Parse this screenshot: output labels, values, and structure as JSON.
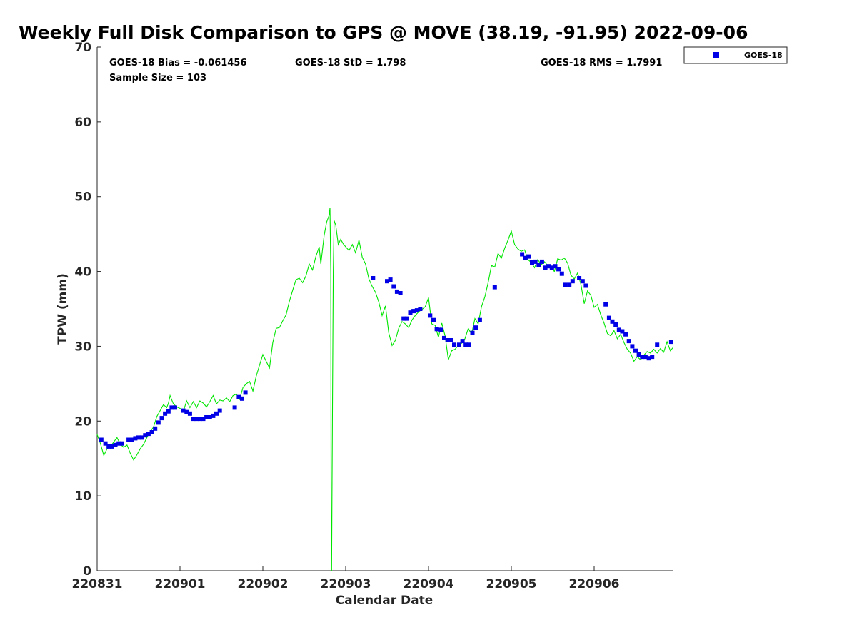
{
  "chart_data": {
    "type": "line+scatter",
    "title": "Weekly Full Disk Comparison to GPS @ MOVE (38.19, -91.95) 2022-09-06",
    "xlabel": "Calendar Date",
    "ylabel": "TPW (mm)",
    "xlim": [
      0,
      6.95
    ],
    "ylim": [
      0,
      70
    ],
    "x_ticks": [
      {
        "value": 0,
        "label": "220831"
      },
      {
        "value": 1,
        "label": "220901"
      },
      {
        "value": 2,
        "label": "220902"
      },
      {
        "value": 3,
        "label": "220903"
      },
      {
        "value": 4,
        "label": "220904"
      },
      {
        "value": 5,
        "label": "220905"
      },
      {
        "value": 6,
        "label": "220906"
      }
    ],
    "y_ticks": [
      0,
      10,
      20,
      30,
      40,
      50,
      60,
      70
    ],
    "stats": {
      "bias": "GOES-18 Bias = -0.061456",
      "std": "GOES-18 StD = 1.798",
      "rms": "GOES-18 RMS = 1.7991",
      "sample_size": "Sample Size = 103"
    },
    "legend": [
      {
        "label": "GOES-18",
        "color": "#0000e6",
        "marker": "square"
      }
    ],
    "legend_position": "top-right outside",
    "series": [
      {
        "name": "GPS",
        "kind": "line",
        "color": "#00e600",
        "points": [
          [
            0.0,
            18.2
          ],
          [
            0.04,
            17.0
          ],
          [
            0.08,
            15.4
          ],
          [
            0.12,
            16.3
          ],
          [
            0.16,
            16.6
          ],
          [
            0.2,
            17.2
          ],
          [
            0.24,
            17.8
          ],
          [
            0.28,
            16.9
          ],
          [
            0.32,
            16.5
          ],
          [
            0.36,
            16.8
          ],
          [
            0.4,
            15.7
          ],
          [
            0.44,
            14.8
          ],
          [
            0.48,
            15.5
          ],
          [
            0.52,
            16.3
          ],
          [
            0.56,
            16.9
          ],
          [
            0.6,
            17.8
          ],
          [
            0.64,
            18.6
          ],
          [
            0.68,
            19.2
          ],
          [
            0.72,
            20.6
          ],
          [
            0.76,
            21.4
          ],
          [
            0.8,
            22.2
          ],
          [
            0.84,
            21.8
          ],
          [
            0.86,
            22.4
          ],
          [
            0.88,
            23.4
          ],
          [
            0.92,
            22.3
          ],
          [
            0.96,
            21.9
          ],
          [
            1.0,
            21.7
          ],
          [
            1.04,
            21.3
          ],
          [
            1.08,
            22.7
          ],
          [
            1.12,
            21.8
          ],
          [
            1.16,
            22.6
          ],
          [
            1.2,
            21.8
          ],
          [
            1.24,
            22.7
          ],
          [
            1.28,
            22.4
          ],
          [
            1.32,
            21.9
          ],
          [
            1.36,
            22.6
          ],
          [
            1.4,
            23.4
          ],
          [
            1.44,
            22.3
          ],
          [
            1.48,
            22.8
          ],
          [
            1.52,
            22.7
          ],
          [
            1.56,
            23.1
          ],
          [
            1.6,
            22.6
          ],
          [
            1.64,
            23.4
          ],
          [
            1.68,
            23.6
          ],
          [
            1.72,
            22.9
          ],
          [
            1.76,
            24.5
          ],
          [
            1.8,
            25.0
          ],
          [
            1.84,
            25.3
          ],
          [
            1.88,
            24.0
          ],
          [
            1.92,
            26.0
          ],
          [
            1.96,
            27.5
          ],
          [
            2.0,
            28.9
          ],
          [
            2.04,
            28.0
          ],
          [
            2.08,
            27.1
          ],
          [
            2.12,
            30.5
          ],
          [
            2.16,
            32.4
          ],
          [
            2.2,
            32.5
          ],
          [
            2.24,
            33.4
          ],
          [
            2.28,
            34.2
          ],
          [
            2.32,
            36.0
          ],
          [
            2.36,
            37.5
          ],
          [
            2.4,
            38.9
          ],
          [
            2.44,
            39.1
          ],
          [
            2.48,
            38.5
          ],
          [
            2.52,
            39.4
          ],
          [
            2.56,
            41.0
          ],
          [
            2.6,
            40.2
          ],
          [
            2.64,
            42.0
          ],
          [
            2.68,
            43.3
          ],
          [
            2.7,
            41.0
          ],
          [
            2.74,
            44.8
          ],
          [
            2.77,
            46.6
          ],
          [
            2.8,
            47.5
          ],
          [
            2.81,
            48.5
          ],
          [
            2.82,
            40.0
          ],
          [
            2.825,
            0.0
          ],
          [
            2.83,
            0.0
          ],
          [
            2.84,
            20.0
          ],
          [
            2.85,
            40.0
          ],
          [
            2.86,
            46.8
          ],
          [
            2.88,
            46.2
          ],
          [
            2.91,
            43.6
          ],
          [
            2.94,
            44.3
          ],
          [
            2.97,
            43.7
          ],
          [
            3.0,
            43.3
          ],
          [
            3.04,
            42.8
          ],
          [
            3.08,
            43.6
          ],
          [
            3.12,
            42.5
          ],
          [
            3.16,
            44.2
          ],
          [
            3.2,
            41.9
          ],
          [
            3.24,
            41.0
          ],
          [
            3.28,
            39.0
          ],
          [
            3.32,
            38.0
          ],
          [
            3.36,
            37.2
          ],
          [
            3.4,
            35.9
          ],
          [
            3.44,
            34.1
          ],
          [
            3.48,
            35.4
          ],
          [
            3.52,
            31.8
          ],
          [
            3.56,
            30.1
          ],
          [
            3.6,
            30.8
          ],
          [
            3.64,
            32.4
          ],
          [
            3.68,
            33.3
          ],
          [
            3.72,
            33.0
          ],
          [
            3.76,
            32.5
          ],
          [
            3.8,
            33.5
          ],
          [
            3.84,
            34.1
          ],
          [
            3.88,
            34.6
          ],
          [
            3.92,
            34.9
          ],
          [
            3.96,
            35.3
          ],
          [
            4.0,
            36.5
          ],
          [
            4.04,
            33.0
          ],
          [
            4.08,
            32.8
          ],
          [
            4.12,
            31.2
          ],
          [
            4.16,
            33.1
          ],
          [
            4.2,
            31.4
          ],
          [
            4.24,
            28.2
          ],
          [
            4.28,
            29.4
          ],
          [
            4.32,
            29.6
          ],
          [
            4.36,
            30.1
          ],
          [
            4.4,
            30.4
          ],
          [
            4.44,
            31.0
          ],
          [
            4.48,
            32.4
          ],
          [
            4.52,
            31.6
          ],
          [
            4.56,
            33.7
          ],
          [
            4.6,
            33.0
          ],
          [
            4.64,
            35.3
          ],
          [
            4.68,
            36.6
          ],
          [
            4.72,
            38.5
          ],
          [
            4.76,
            40.8
          ],
          [
            4.8,
            40.6
          ],
          [
            4.84,
            42.4
          ],
          [
            4.88,
            41.8
          ],
          [
            4.92,
            43.1
          ],
          [
            4.96,
            44.2
          ],
          [
            5.0,
            45.4
          ],
          [
            5.04,
            43.6
          ],
          [
            5.08,
            43.0
          ],
          [
            5.12,
            42.7
          ],
          [
            5.16,
            42.9
          ],
          [
            5.2,
            41.6
          ],
          [
            5.24,
            41.2
          ],
          [
            5.28,
            40.5
          ],
          [
            5.32,
            41.6
          ],
          [
            5.36,
            40.9
          ],
          [
            5.4,
            41.3
          ],
          [
            5.44,
            40.8
          ],
          [
            5.48,
            40.5
          ],
          [
            5.52,
            40.0
          ],
          [
            5.56,
            41.7
          ],
          [
            5.6,
            41.5
          ],
          [
            5.64,
            41.8
          ],
          [
            5.68,
            41.1
          ],
          [
            5.72,
            39.5
          ],
          [
            5.76,
            39.0
          ],
          [
            5.8,
            39.8
          ],
          [
            5.84,
            38.3
          ],
          [
            5.88,
            35.7
          ],
          [
            5.92,
            37.4
          ],
          [
            5.96,
            36.8
          ],
          [
            6.0,
            35.2
          ],
          [
            6.04,
            35.6
          ],
          [
            6.08,
            34.2
          ],
          [
            6.12,
            33.1
          ],
          [
            6.16,
            31.7
          ],
          [
            6.2,
            31.4
          ],
          [
            6.24,
            32.1
          ],
          [
            6.28,
            31.0
          ],
          [
            6.32,
            31.6
          ],
          [
            6.36,
            30.5
          ],
          [
            6.4,
            29.6
          ],
          [
            6.44,
            29.1
          ],
          [
            6.48,
            28.0
          ],
          [
            6.52,
            28.6
          ],
          [
            6.56,
            28.2
          ],
          [
            6.6,
            28.8
          ],
          [
            6.64,
            29.3
          ],
          [
            6.68,
            29.1
          ],
          [
            6.72,
            29.6
          ],
          [
            6.76,
            29.1
          ],
          [
            6.8,
            29.7
          ],
          [
            6.84,
            29.2
          ],
          [
            6.88,
            30.6
          ],
          [
            6.92,
            29.4
          ],
          [
            6.95,
            29.8
          ]
        ]
      },
      {
        "name": "GOES-18",
        "kind": "scatter",
        "color": "#0000e6",
        "points": [
          [
            0.05,
            17.5
          ],
          [
            0.1,
            17.0
          ],
          [
            0.14,
            16.6
          ],
          [
            0.18,
            16.6
          ],
          [
            0.22,
            16.8
          ],
          [
            0.26,
            17.0
          ],
          [
            0.3,
            17.0
          ],
          [
            0.38,
            17.5
          ],
          [
            0.42,
            17.5
          ],
          [
            0.46,
            17.7
          ],
          [
            0.5,
            17.8
          ],
          [
            0.54,
            17.8
          ],
          [
            0.58,
            18.1
          ],
          [
            0.62,
            18.3
          ],
          [
            0.66,
            18.5
          ],
          [
            0.7,
            19.0
          ],
          [
            0.74,
            19.8
          ],
          [
            0.78,
            20.4
          ],
          [
            0.82,
            21.0
          ],
          [
            0.86,
            21.3
          ],
          [
            0.9,
            21.8
          ],
          [
            0.94,
            21.8
          ],
          [
            1.04,
            21.4
          ],
          [
            1.08,
            21.2
          ],
          [
            1.12,
            21.0
          ],
          [
            1.16,
            20.3
          ],
          [
            1.2,
            20.3
          ],
          [
            1.24,
            20.3
          ],
          [
            1.28,
            20.3
          ],
          [
            1.32,
            20.5
          ],
          [
            1.36,
            20.5
          ],
          [
            1.4,
            20.7
          ],
          [
            1.44,
            21.0
          ],
          [
            1.48,
            21.4
          ],
          [
            1.66,
            21.8
          ],
          [
            1.71,
            23.2
          ],
          [
            1.75,
            23.0
          ],
          [
            1.79,
            23.8
          ],
          [
            3.33,
            39.1
          ],
          [
            3.5,
            38.7
          ],
          [
            3.54,
            38.9
          ],
          [
            3.58,
            38.0
          ],
          [
            3.62,
            37.3
          ],
          [
            3.66,
            37.1
          ],
          [
            3.7,
            33.7
          ],
          [
            3.74,
            33.7
          ],
          [
            3.78,
            34.5
          ],
          [
            3.82,
            34.7
          ],
          [
            3.86,
            34.8
          ],
          [
            3.9,
            35.0
          ],
          [
            4.02,
            34.1
          ],
          [
            4.06,
            33.5
          ],
          [
            4.1,
            32.3
          ],
          [
            4.15,
            32.2
          ],
          [
            4.19,
            31.1
          ],
          [
            4.23,
            30.8
          ],
          [
            4.27,
            30.8
          ],
          [
            4.31,
            30.2
          ],
          [
            4.37,
            30.2
          ],
          [
            4.41,
            30.7
          ],
          [
            4.45,
            30.2
          ],
          [
            4.49,
            30.2
          ],
          [
            4.53,
            31.8
          ],
          [
            4.57,
            32.5
          ],
          [
            4.62,
            33.5
          ],
          [
            4.8,
            37.9
          ],
          [
            5.13,
            42.3
          ],
          [
            5.17,
            41.8
          ],
          [
            5.21,
            42.0
          ],
          [
            5.25,
            41.2
          ],
          [
            5.29,
            41.3
          ],
          [
            5.33,
            40.9
          ],
          [
            5.37,
            41.3
          ],
          [
            5.41,
            40.5
          ],
          [
            5.45,
            40.7
          ],
          [
            5.49,
            40.5
          ],
          [
            5.53,
            40.7
          ],
          [
            5.57,
            40.3
          ],
          [
            5.61,
            39.7
          ],
          [
            5.65,
            38.2
          ],
          [
            5.7,
            38.2
          ],
          [
            5.74,
            38.7
          ],
          [
            5.82,
            39.1
          ],
          [
            5.86,
            38.7
          ],
          [
            5.9,
            38.1
          ],
          [
            6.14,
            35.6
          ],
          [
            6.18,
            33.8
          ],
          [
            6.22,
            33.3
          ],
          [
            6.26,
            32.9
          ],
          [
            6.3,
            32.2
          ],
          [
            6.34,
            32.0
          ],
          [
            6.38,
            31.6
          ],
          [
            6.42,
            30.7
          ],
          [
            6.46,
            30.0
          ],
          [
            6.5,
            29.4
          ],
          [
            6.54,
            28.9
          ],
          [
            6.58,
            28.6
          ],
          [
            6.62,
            28.6
          ],
          [
            6.66,
            28.4
          ],
          [
            6.7,
            28.6
          ],
          [
            6.76,
            30.2
          ],
          [
            6.93,
            30.6
          ]
        ]
      }
    ]
  }
}
